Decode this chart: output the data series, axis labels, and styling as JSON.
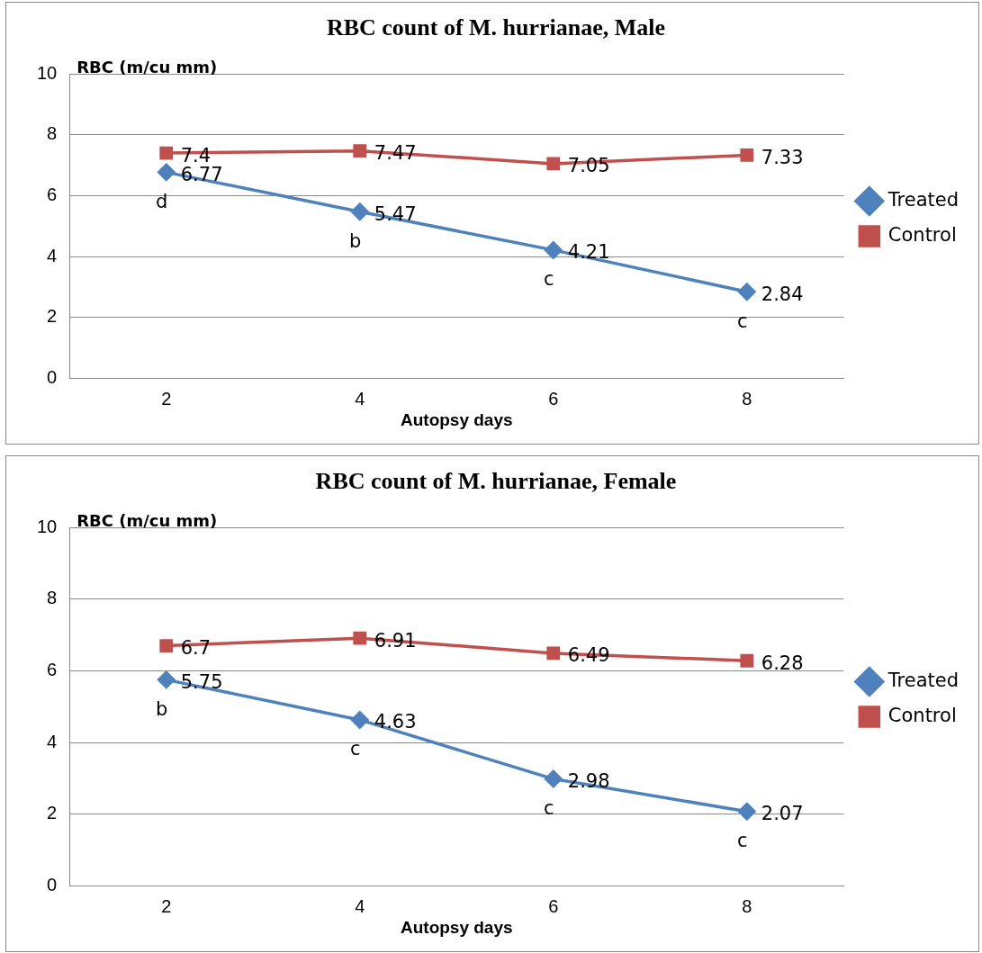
{
  "chart_data": [
    {
      "type": "line",
      "title": "RBC count of M. hurrianae, Male",
      "xlabel": "Autopsy days",
      "ylabel": "RBC (m/cu mm)",
      "categories": [
        "2",
        "4",
        "6",
        "8"
      ],
      "ylim": [
        0,
        10
      ],
      "yticks": [
        0,
        2,
        4,
        6,
        8,
        10
      ],
      "grid": "y",
      "legend": "right",
      "data_labels": true,
      "series": [
        {
          "name": "Treated",
          "color": "#4f81bd",
          "marker": "diamond",
          "values": [
            6.77,
            5.47,
            4.21,
            2.84
          ]
        },
        {
          "name": "Control",
          "color": "#c0504d",
          "marker": "square",
          "values": [
            7.4,
            7.47,
            7.05,
            7.33
          ]
        }
      ],
      "annotations": [
        {
          "text": "d",
          "x": "2",
          "y": 6.77
        },
        {
          "text": "b",
          "x": "4",
          "y": 5.47
        },
        {
          "text": "c",
          "x": "6",
          "y": 4.21
        },
        {
          "text": "c",
          "x": "8",
          "y": 2.84
        }
      ]
    },
    {
      "type": "line",
      "title": "RBC count of M. hurrianae, Female",
      "xlabel": "Autopsy days",
      "ylabel": "RBC (m/cu mm)",
      "categories": [
        "2",
        "4",
        "6",
        "8"
      ],
      "ylim": [
        0,
        10
      ],
      "yticks": [
        0,
        2,
        4,
        6,
        8,
        10
      ],
      "grid": "y",
      "legend": "right",
      "data_labels": true,
      "series": [
        {
          "name": "Treated",
          "color": "#4f81bd",
          "marker": "diamond",
          "values": [
            5.75,
            4.63,
            2.98,
            2.07
          ]
        },
        {
          "name": "Control",
          "color": "#c0504d",
          "marker": "square",
          "values": [
            6.7,
            6.91,
            6.49,
            6.28
          ]
        }
      ],
      "annotations": [
        {
          "text": "b",
          "x": "2",
          "y": 5.75
        },
        {
          "text": "c",
          "x": "4",
          "y": 4.63
        },
        {
          "text": "c",
          "x": "6",
          "y": 2.98
        },
        {
          "text": "c",
          "x": "8",
          "y": 2.07
        }
      ]
    }
  ]
}
